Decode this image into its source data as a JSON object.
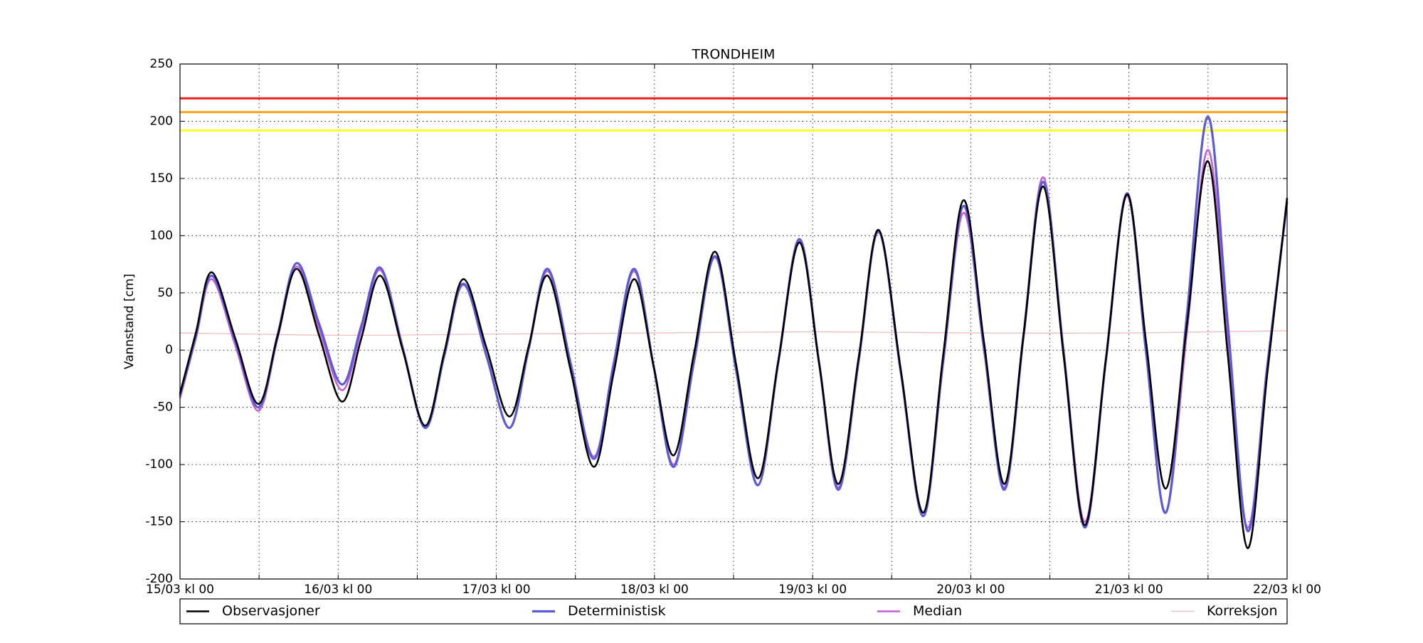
{
  "chart_data": {
    "type": "line",
    "title": "TRONDHEIM",
    "y_label": "Vannstand [cm]",
    "x": [
      0,
      2.4,
      4.8,
      8.4,
      11.9,
      14.8,
      17.7,
      21.1,
      24.6,
      27.5,
      30.4,
      33.8,
      37.2,
      40.1,
      43,
      46.5,
      50,
      52.9,
      55.8,
      59.3,
      62.8,
      65.8,
      68.9,
      71.9,
      74.9,
      78,
      81.2,
      84.4,
      87.7,
      90.8,
      94,
      97,
      99.9,
      103,
      106,
      109.4,
      112.8,
      115.8,
      118.9,
      122,
      125.1,
      128,
      131,
      134.1,
      137.3,
      140.5,
      143.7,
      146.6,
      149.6,
      152.8,
      156,
      159,
      162,
      165,
      168
    ],
    "series": [
      {
        "name": "Observasjoner",
        "color": "#000000",
        "width": 2.6,
        "values": [
          -38,
          15,
          68,
          10,
          -47,
          12,
          71,
          13,
          -45,
          10,
          65,
          0,
          -66,
          -2,
          62,
          2,
          -58,
          3,
          65,
          -18,
          -102,
          -20,
          62,
          -15,
          -92,
          -3,
          86,
          -13,
          -112,
          -9,
          94,
          -12,
          -117,
          -6,
          105,
          -18,
          -142,
          -5,
          131,
          7,
          -117,
          13,
          143,
          -5,
          -153,
          -8,
          136,
          7,
          -121,
          22,
          165,
          -4,
          -173,
          -20,
          133
        ]
      },
      {
        "name": "Deterministisk",
        "color": "#5b5bd6",
        "width": 3.2,
        "values": [
          -40,
          12,
          65,
          8,
          -50,
          13,
          76,
          23,
          -30,
          21,
          72,
          2,
          -68,
          -5,
          58,
          -5,
          -68,
          1,
          71,
          -12,
          -95,
          -12,
          71,
          -15,
          -102,
          -10,
          82,
          -18,
          -118,
          -10,
          97,
          -12,
          -122,
          -9,
          104,
          -20,
          -145,
          -10,
          126,
          2,
          -122,
          12,
          147,
          -4,
          -155,
          -9,
          137,
          -2,
          -142,
          31,
          204,
          23,
          -158,
          -14,
          130
        ]
      },
      {
        "name": "Median",
        "color": "#c45ed8",
        "width": 2.6,
        "values": [
          -42,
          10,
          62,
          4,
          -53,
          10,
          73,
          19,
          -35,
          17,
          70,
          1,
          -68,
          -5,
          57,
          -5,
          -68,
          0,
          69,
          -12,
          -93,
          -12,
          69,
          -15,
          -100,
          -10,
          81,
          -18,
          -118,
          -11,
          95,
          -12,
          -120,
          -8,
          103,
          -21,
          -145,
          -12,
          120,
          0,
          -120,
          15,
          151,
          0,
          -150,
          -7,
          135,
          -3,
          -142,
          16,
          175,
          10,
          -155,
          -12,
          130
        ]
      },
      {
        "name": "Korreksjon",
        "color": "#f2b8b8",
        "width": 1.2,
        "x": [
          0,
          24,
          48,
          72,
          96,
          120,
          144,
          168
        ],
        "values": [
          15,
          13,
          14,
          15,
          16,
          15,
          15,
          17
        ]
      }
    ],
    "thresholds": [
      {
        "value": 220,
        "color": "#ee1c1c"
      },
      {
        "value": 208,
        "color": "#ffa31a"
      },
      {
        "value": 192,
        "color": "#ffff2e"
      }
    ],
    "xlim": [
      0,
      168
    ],
    "xticks": [
      {
        "value": 0,
        "label": "15/03 kl 00"
      },
      {
        "value": 24,
        "label": "16/03 kl 00"
      },
      {
        "value": 48,
        "label": "17/03 kl 00"
      },
      {
        "value": 72,
        "label": "18/03 kl 00"
      },
      {
        "value": 96,
        "label": "19/03 kl 00"
      },
      {
        "value": 120,
        "label": "20/03 kl 00"
      },
      {
        "value": 144,
        "label": "21/03 kl 00"
      },
      {
        "value": 168,
        "label": "22/03 kl 00"
      }
    ],
    "xminor": [
      12,
      36,
      60,
      84,
      108,
      132,
      156
    ],
    "ylim": [
      -200,
      250
    ],
    "yticks": [
      -200,
      -150,
      -100,
      -50,
      0,
      50,
      100,
      150,
      200,
      250
    ],
    "grid": true,
    "legend": "bottom"
  }
}
